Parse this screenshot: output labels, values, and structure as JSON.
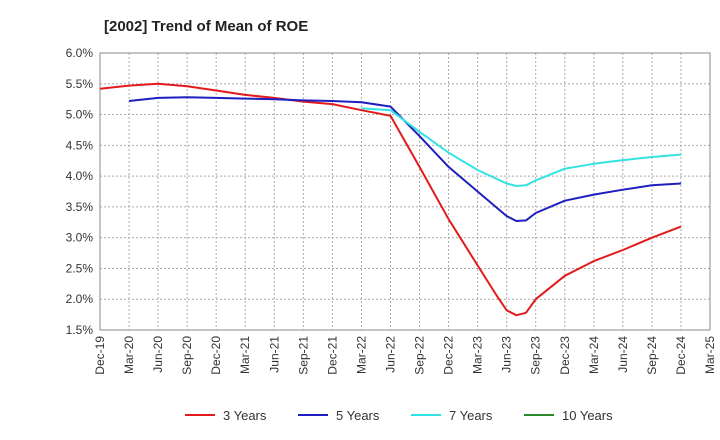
{
  "chart_data": {
    "type": "line",
    "title": "[2002]  Trend of Mean of ROE",
    "xlabel": "",
    "ylabel": "",
    "x_ticks": [
      "Dec-19",
      "Mar-20",
      "Jun-20",
      "Sep-20",
      "Dec-20",
      "Mar-21",
      "Jun-21",
      "Sep-21",
      "Dec-21",
      "Mar-22",
      "Jun-22",
      "Sep-22",
      "Dec-22",
      "Mar-23",
      "Jun-23",
      "Sep-23",
      "Dec-23",
      "Mar-24",
      "Jun-24",
      "Sep-24",
      "Dec-24",
      "Mar-25"
    ],
    "y_ticks": [
      "1.5%",
      "2.0%",
      "2.5%",
      "3.0%",
      "3.5%",
      "4.0%",
      "4.5%",
      "5.0%",
      "5.5%",
      "6.0%"
    ],
    "ylim": [
      1.5,
      6.0
    ],
    "grid": true,
    "legend_position": "bottom",
    "series": [
      {
        "name": "3 Years",
        "color": "#e31a1c",
        "points": [
          [
            "Dec-19",
            5.42
          ],
          [
            "Mar-20",
            5.47
          ],
          [
            "Jun-20",
            5.5
          ],
          [
            "Sep-20",
            5.46
          ],
          [
            "Dec-20",
            5.39
          ],
          [
            "Mar-21",
            5.32
          ],
          [
            "Jun-21",
            5.27
          ],
          [
            "Sep-21",
            5.21
          ],
          [
            "Dec-21",
            5.17
          ],
          [
            "Mar-22",
            5.07
          ],
          [
            "Jun-22",
            4.98
          ],
          [
            "Sep-22",
            4.15
          ],
          [
            "Dec-22",
            3.3
          ],
          [
            "Mar-23",
            2.55
          ],
          [
            "May-23",
            2.05
          ],
          [
            "Jun-23",
            1.82
          ],
          [
            "Jul-23",
            1.74
          ],
          [
            "Aug-23",
            1.78
          ],
          [
            "Sep-23",
            2.0
          ],
          [
            "Dec-23",
            2.38
          ],
          [
            "Mar-24",
            2.62
          ],
          [
            "Jun-24",
            2.8
          ],
          [
            "Sep-24",
            3.0
          ],
          [
            "Dec-24",
            3.18
          ]
        ]
      },
      {
        "name": "5 Years",
        "color": "#1f1fbf",
        "points": [
          [
            "Mar-20",
            5.22
          ],
          [
            "Jun-20",
            5.27
          ],
          [
            "Sep-20",
            5.28
          ],
          [
            "Dec-20",
            5.27
          ],
          [
            "Mar-21",
            5.26
          ],
          [
            "Jun-21",
            5.25
          ],
          [
            "Sep-21",
            5.23
          ],
          [
            "Dec-21",
            5.22
          ],
          [
            "Mar-22",
            5.2
          ],
          [
            "Jun-22",
            5.13
          ],
          [
            "Sep-22",
            4.65
          ],
          [
            "Dec-22",
            4.15
          ],
          [
            "Mar-23",
            3.75
          ],
          [
            "Jun-23",
            3.35
          ],
          [
            "Jul-23",
            3.27
          ],
          [
            "Aug-23",
            3.28
          ],
          [
            "Sep-23",
            3.4
          ],
          [
            "Dec-23",
            3.6
          ],
          [
            "Mar-24",
            3.7
          ],
          [
            "Jun-24",
            3.78
          ],
          [
            "Sep-24",
            3.85
          ],
          [
            "Dec-24",
            3.88
          ]
        ]
      },
      {
        "name": "7 Years",
        "color": "#33e3e3",
        "points": [
          [
            "Mar-22",
            5.1
          ],
          [
            "Jun-22",
            5.07
          ],
          [
            "Sep-22",
            4.72
          ],
          [
            "Dec-22",
            4.38
          ],
          [
            "Mar-23",
            4.1
          ],
          [
            "Jun-23",
            3.88
          ],
          [
            "Jul-23",
            3.84
          ],
          [
            "Aug-23",
            3.85
          ],
          [
            "Sep-23",
            3.93
          ],
          [
            "Dec-23",
            4.12
          ],
          [
            "Mar-24",
            4.2
          ],
          [
            "Jun-24",
            4.26
          ],
          [
            "Sep-24",
            4.31
          ],
          [
            "Dec-24",
            4.35
          ]
        ]
      },
      {
        "name": "10 Years",
        "color": "#2a8a2a",
        "points": []
      }
    ]
  }
}
